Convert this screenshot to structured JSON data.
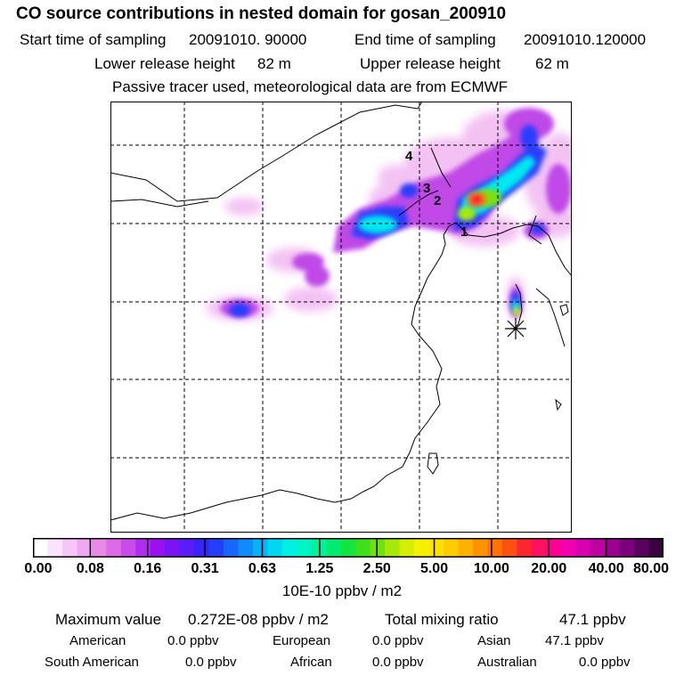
{
  "title": "CO  source contributions in nested domain for gosan_200910",
  "header": {
    "start_label": "Start time of sampling",
    "start_value": "20091010. 90000",
    "end_label": "End time of sampling",
    "end_value": "20091010.120000",
    "lower_label": "Lower release height",
    "lower_value": "82 m",
    "upper_label": "Upper release height",
    "upper_value": "62 m",
    "note": "Passive tracer used, meteorological data are from ECMWF"
  },
  "map": {
    "site_labels": [
      "1",
      "2",
      "3",
      "4"
    ],
    "receptor_marker": "asterisk-icon"
  },
  "colorbar": {
    "ticks": [
      "0.00",
      "0.08",
      "0.16",
      "0.31",
      "0.63",
      "1.25",
      "2.50",
      "5.00",
      "10.00",
      "20.00",
      "40.00",
      "80.00"
    ],
    "units": "10E-10 ppbv / m2",
    "colors": [
      "#ffffff",
      "#fbe3fb",
      "#f6c6f6",
      "#f0a8f0",
      "#e98ae9",
      "#de6ae8",
      "#c84bea",
      "#b02cee",
      "#9a10f0",
      "#7a14f4",
      "#5a1cf8",
      "#3a24fb",
      "#2240fc",
      "#1866fc",
      "#0e8cfb",
      "#06b2f8",
      "#00d8f2",
      "#00f0e6",
      "#00f5c4",
      "#00f29c",
      "#00ec70",
      "#14e440",
      "#3ee01c",
      "#70e010",
      "#a6e80a",
      "#d6ee06",
      "#f6f000",
      "#ffe200",
      "#ffcc00",
      "#ffb000",
      "#ff9400",
      "#ff7400",
      "#ff5014",
      "#ff2630",
      "#ff1060",
      "#ff0090",
      "#f200b0",
      "#d800b0",
      "#bc00a2",
      "#9c0090",
      "#7c007a",
      "#5c0060",
      "#3c0040"
    ]
  },
  "stats": {
    "max_label": "Maximum value",
    "max_value": "0.272E-08 ppbv / m2",
    "total_label": "Total mixing ratio",
    "total_value": "47.1 ppbv",
    "regions": [
      {
        "name": "American",
        "value": "0.0 ppbv"
      },
      {
        "name": "European",
        "value": "0.0 ppbv"
      },
      {
        "name": "Asian",
        "value": "47.1 ppbv"
      },
      {
        "name": "South American",
        "value": "0.0 ppbv"
      },
      {
        "name": "African",
        "value": "0.0 ppbv"
      },
      {
        "name": "Australian",
        "value": "0.0 ppbv"
      }
    ]
  }
}
